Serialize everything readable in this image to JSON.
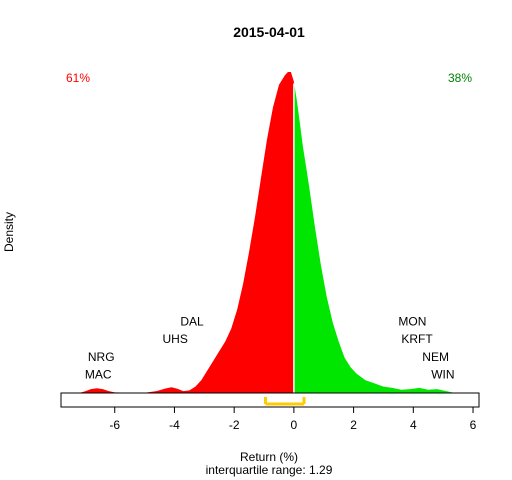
{
  "chart_data": {
    "type": "area",
    "title": "2015-04-01",
    "xlabel": "Return (%)",
    "ylabel": "Density",
    "subtitle": "interquartile range: 1.29",
    "xlim": [
      -7.8,
      6.2
    ],
    "ylim": [
      0,
      1
    ],
    "x_ticks": [
      -6,
      -4,
      -2,
      0,
      2,
      4,
      6
    ],
    "x_tick_labels": [
      "-6",
      "-4",
      "-2",
      "0",
      "2",
      "4",
      "6"
    ],
    "split_at": 0,
    "colors": {
      "negative": "#ff0000",
      "positive": "#00e600",
      "split_line": "#ffffff",
      "baseline": "#bbbbbb",
      "iqr_bracket": "#ffcc00",
      "left_pct": "#ff0000",
      "right_pct": "#008000"
    },
    "left_pct": "61%",
    "right_pct": "38%",
    "iqr": [
      -0.95,
      0.34
    ],
    "density": {
      "x": [
        -7.2,
        -7.0,
        -6.8,
        -6.6,
        -6.4,
        -6.2,
        -6.0,
        -5.5,
        -5.0,
        -4.6,
        -4.3,
        -4.1,
        -3.9,
        -3.7,
        -3.5,
        -3.3,
        -3.1,
        -2.9,
        -2.7,
        -2.5,
        -2.3,
        -2.1,
        -1.9,
        -1.7,
        -1.5,
        -1.3,
        -1.1,
        -0.9,
        -0.7,
        -0.5,
        -0.3,
        -0.2,
        -0.1,
        0.0,
        0.1,
        0.2,
        0.3,
        0.5,
        0.7,
        0.9,
        1.1,
        1.3,
        1.5,
        1.7,
        1.9,
        2.1,
        2.4,
        2.7,
        3.0,
        3.3,
        3.6,
        3.9,
        4.2,
        4.5,
        4.8,
        5.1,
        5.4
      ],
      "y": [
        0.0,
        0.005,
        0.012,
        0.015,
        0.012,
        0.006,
        0.002,
        0.001,
        0.001,
        0.006,
        0.014,
        0.018,
        0.013,
        0.006,
        0.008,
        0.02,
        0.04,
        0.07,
        0.1,
        0.13,
        0.16,
        0.2,
        0.26,
        0.34,
        0.44,
        0.55,
        0.67,
        0.79,
        0.89,
        0.96,
        0.99,
        1.0,
        1.0,
        0.97,
        0.91,
        0.84,
        0.77,
        0.65,
        0.52,
        0.4,
        0.3,
        0.22,
        0.16,
        0.11,
        0.08,
        0.06,
        0.04,
        0.03,
        0.02,
        0.016,
        0.01,
        0.012,
        0.016,
        0.01,
        0.012,
        0.006,
        0.0
      ]
    },
    "annotations": [
      {
        "text": "DAL",
        "x": -3.8,
        "y": 0.21,
        "anchor": "start"
      },
      {
        "text": "UHS",
        "x": -4.4,
        "y": 0.155,
        "anchor": "start"
      },
      {
        "text": "NRG",
        "x": -6.9,
        "y": 0.1,
        "anchor": "start"
      },
      {
        "text": "MAC",
        "x": -7.0,
        "y": 0.045,
        "anchor": "start"
      },
      {
        "text": "MON",
        "x": 3.5,
        "y": 0.21,
        "anchor": "start"
      },
      {
        "text": "KRFT",
        "x": 3.6,
        "y": 0.155,
        "anchor": "start"
      },
      {
        "text": "NEM",
        "x": 4.3,
        "y": 0.1,
        "anchor": "start"
      },
      {
        "text": "WIN",
        "x": 4.6,
        "y": 0.045,
        "anchor": "start"
      }
    ]
  }
}
